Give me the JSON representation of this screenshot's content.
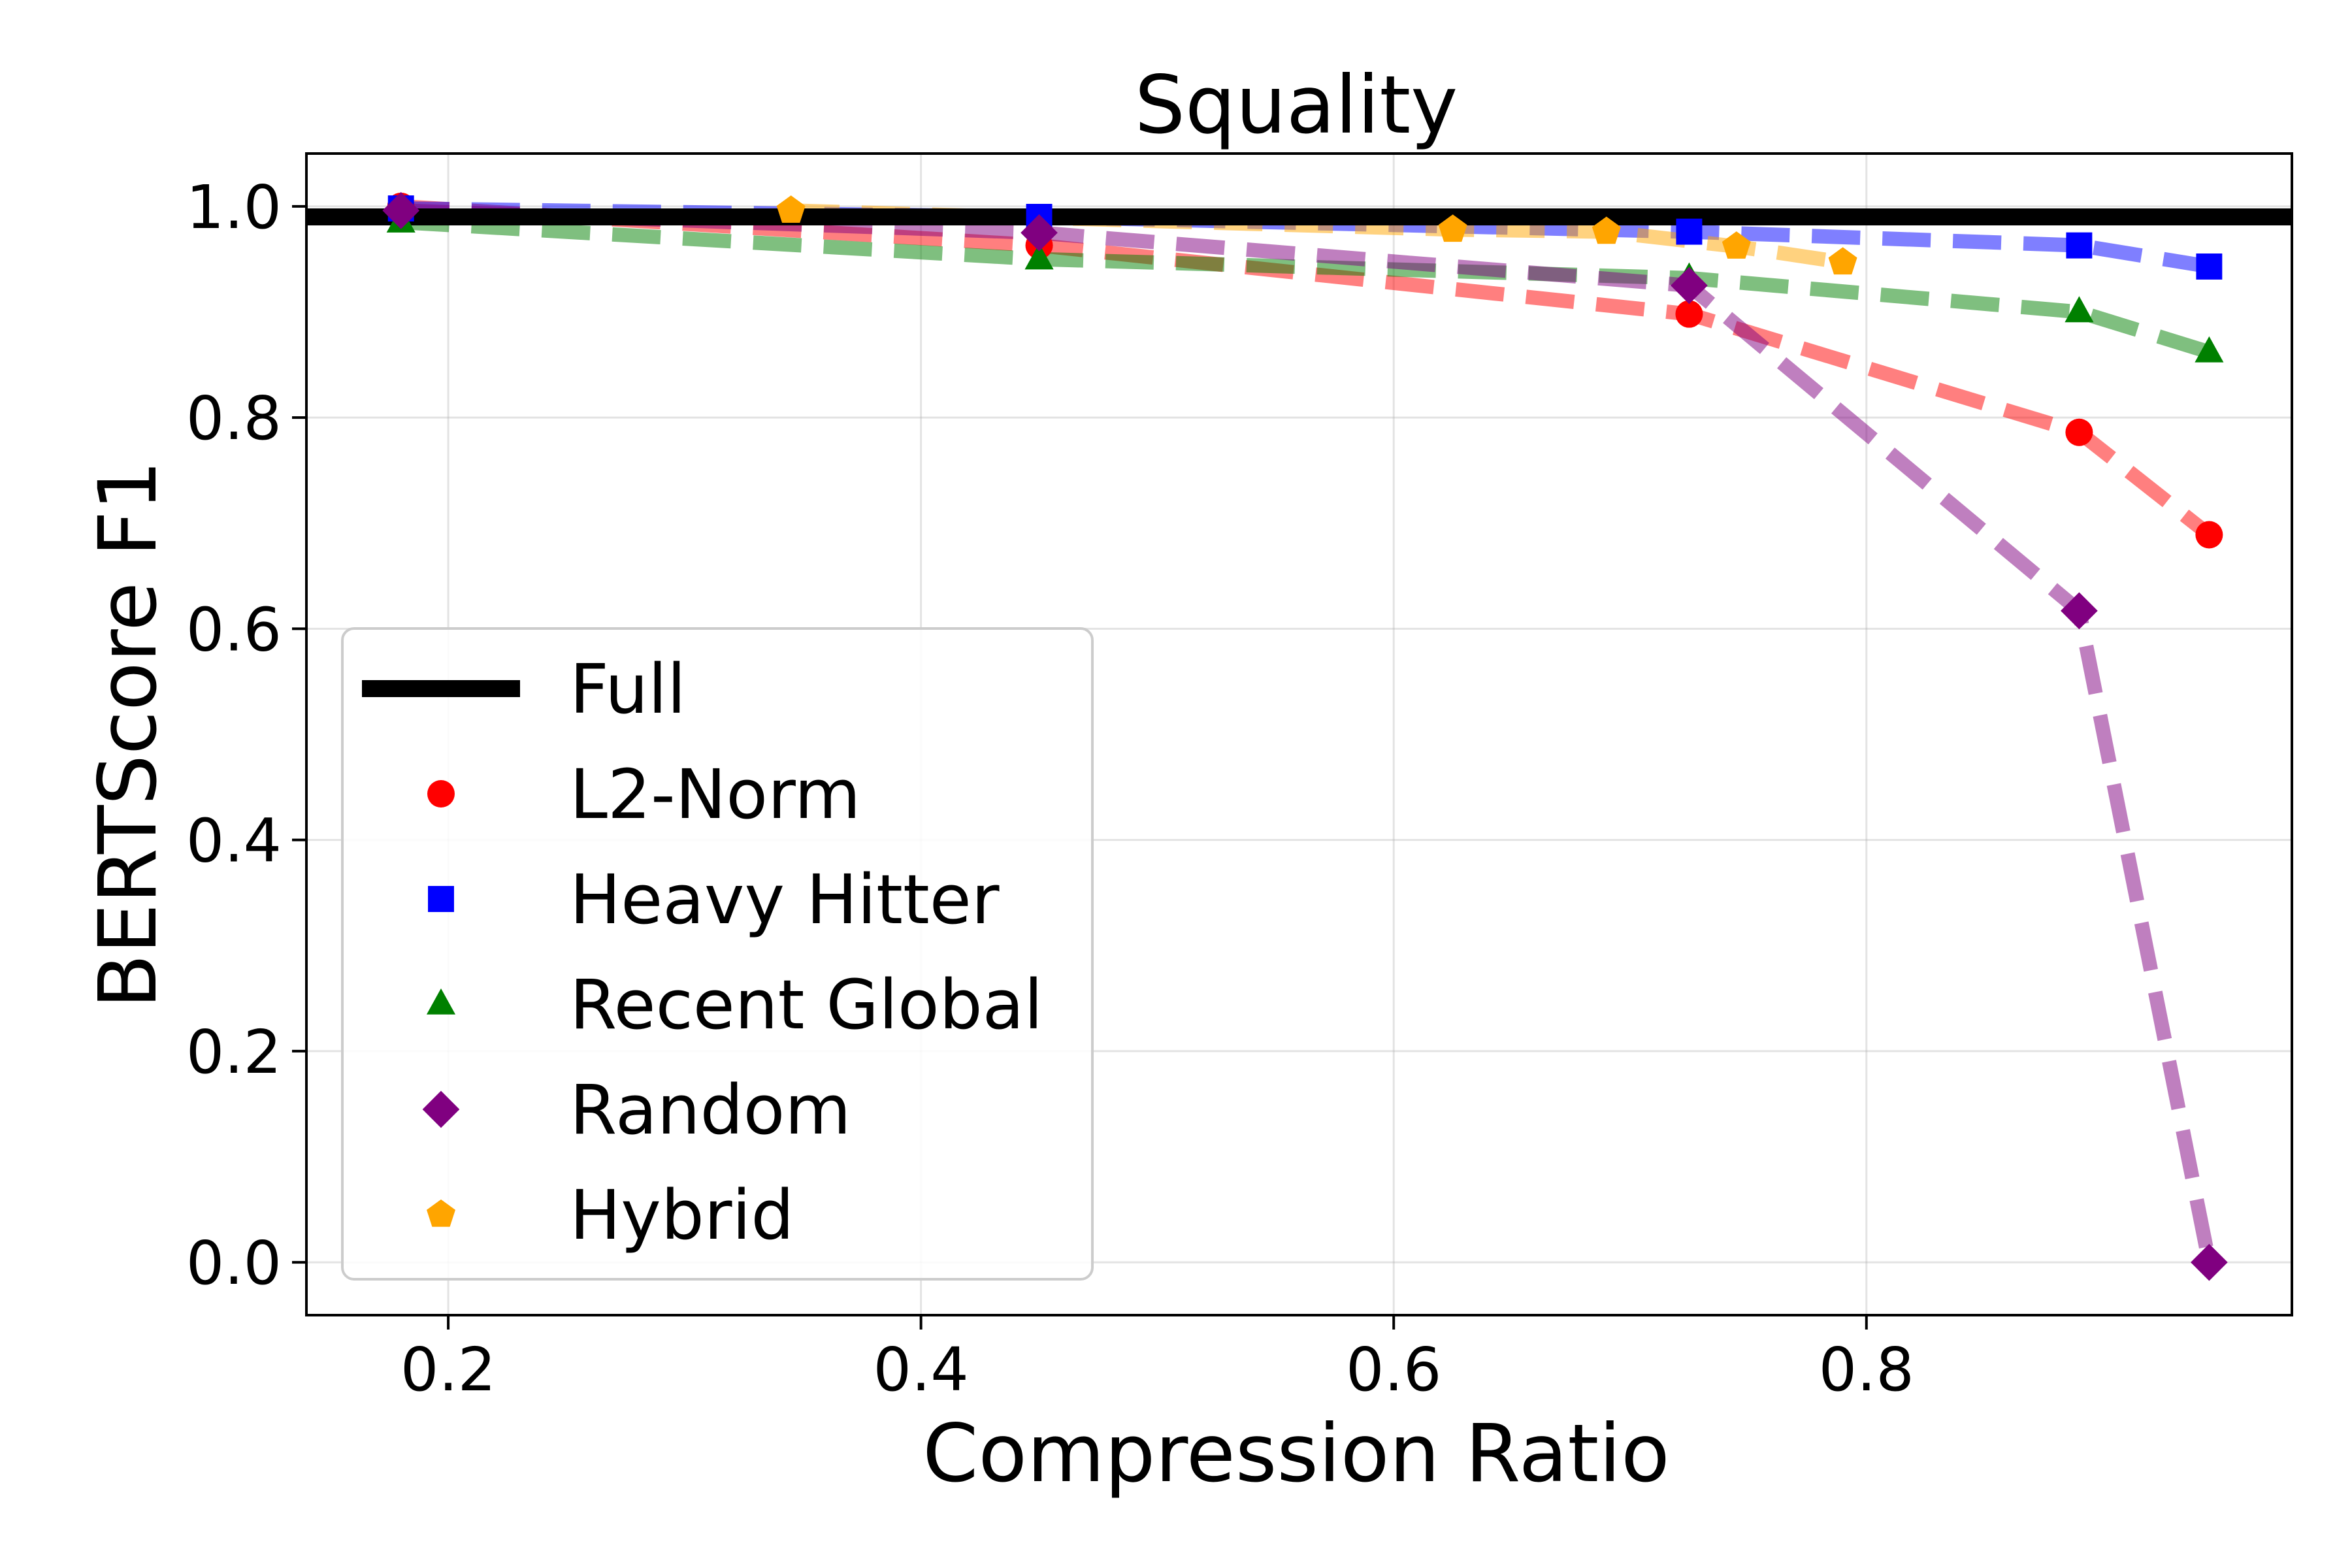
{
  "chart_data": {
    "type": "line",
    "title": "Squality",
    "xlabel": "Compression Ratio",
    "ylabel": "BERTScore F1",
    "xlim": [
      0.14,
      0.98
    ],
    "ylim": [
      -0.05,
      1.05
    ],
    "xticks": [
      0.2,
      0.4,
      0.6,
      0.8
    ],
    "yticks": [
      0.0,
      0.2,
      0.4,
      0.6,
      0.8,
      1.0
    ],
    "xtick_labels": [
      "0.2",
      "0.4",
      "0.6",
      "0.8"
    ],
    "ytick_labels": [
      "0.0",
      "0.2",
      "0.4",
      "0.6",
      "0.8",
      "1.0"
    ],
    "grid": true,
    "legend_position": "lower-left",
    "reference_line": {
      "name": "Full",
      "y": 0.99,
      "color": "#000000"
    },
    "series": [
      {
        "name": "L2-Norm",
        "color": "#ff0000",
        "marker": "circle",
        "x": [
          0.18,
          0.45,
          0.725,
          0.89,
          0.945
        ],
        "y": [
          1.0,
          0.963,
          0.898,
          0.786,
          0.689
        ]
      },
      {
        "name": "Heavy Hitter",
        "color": "#0000ff",
        "marker": "square",
        "x": [
          0.18,
          0.45,
          0.725,
          0.89,
          0.945
        ],
        "y": [
          0.998,
          0.99,
          0.976,
          0.963,
          0.943
        ]
      },
      {
        "name": "Recent Global",
        "color": "#008000",
        "marker": "triangle",
        "x": [
          0.18,
          0.45,
          0.725,
          0.89,
          0.945
        ],
        "y": [
          0.985,
          0.95,
          0.932,
          0.9,
          0.862
        ]
      },
      {
        "name": "Random",
        "color": "#800080",
        "marker": "diamond",
        "x": [
          0.18,
          0.45,
          0.725,
          0.89,
          0.945
        ],
        "y": [
          0.996,
          0.975,
          0.925,
          0.617,
          0.0
        ]
      },
      {
        "name": "Hybrid",
        "color": "#ffa500",
        "marker": "pentagon",
        "x": [
          0.345,
          0.625,
          0.69,
          0.745,
          0.79
        ],
        "y": [
          0.996,
          0.978,
          0.976,
          0.962,
          0.947
        ]
      }
    ]
  }
}
